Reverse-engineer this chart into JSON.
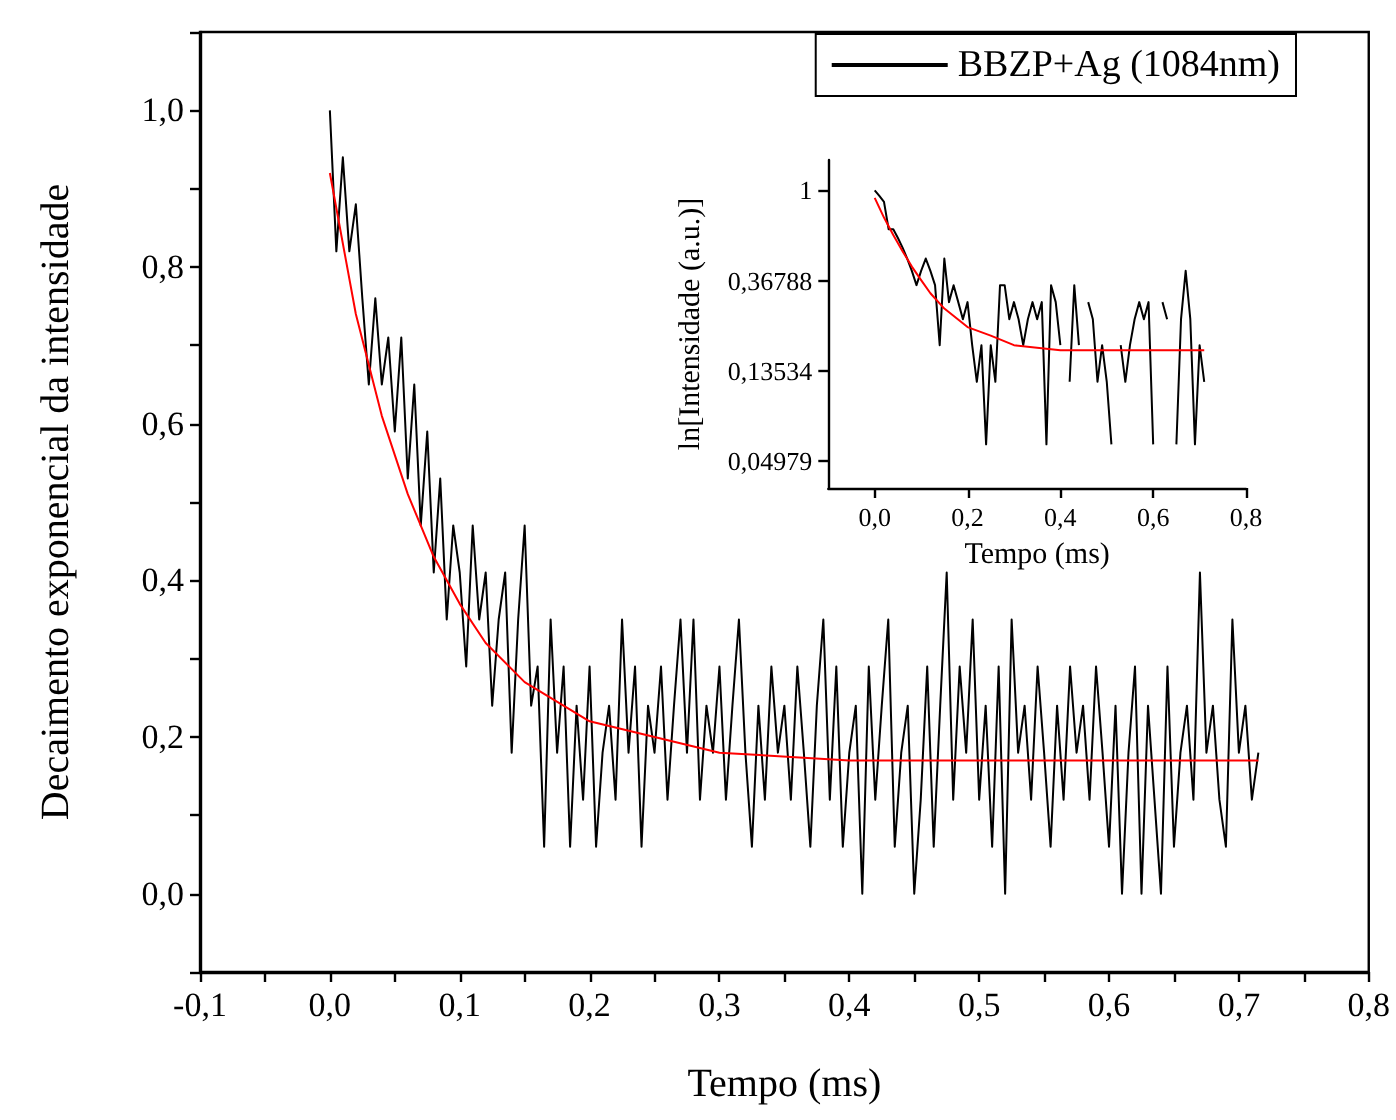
{
  "chart_data": [
    {
      "type": "line",
      "xlabel": "Tempo (ms)",
      "ylabel": "Decaimento exponencial da intensidade",
      "legend": "top right",
      "grid": false,
      "xlim": [
        -0.1,
        0.8
      ],
      "ylim": [
        -0.1,
        1.1
      ],
      "xticks": [
        {
          "value": -0.1,
          "label": "-0,1"
        },
        {
          "value": -0.05,
          "label": null
        },
        {
          "value": 0,
          "label": "0,0"
        },
        {
          "value": 0.05,
          "label": null
        },
        {
          "value": 0.1,
          "label": "0,1"
        },
        {
          "value": 0.15,
          "label": null
        },
        {
          "value": 0.2,
          "label": "0,2"
        },
        {
          "value": 0.25,
          "label": null
        },
        {
          "value": 0.3,
          "label": "0,3"
        },
        {
          "value": 0.35,
          "label": null
        },
        {
          "value": 0.4,
          "label": "0,4"
        },
        {
          "value": 0.45,
          "label": null
        },
        {
          "value": 0.5,
          "label": "0,5"
        },
        {
          "value": 0.55,
          "label": null
        },
        {
          "value": 0.6,
          "label": "0,6"
        },
        {
          "value": 0.65,
          "label": null
        },
        {
          "value": 0.7,
          "label": "0,7"
        },
        {
          "value": 0.75,
          "label": null
        },
        {
          "value": 0.8,
          "label": "0,8"
        }
      ],
      "yticks": [
        {
          "value": -0.1,
          "label": null
        },
        {
          "value": 0,
          "label": "0,0"
        },
        {
          "value": 0.1,
          "label": null
        },
        {
          "value": 0.2,
          "label": "0,2"
        },
        {
          "value": 0.3,
          "label": null
        },
        {
          "value": 0.4,
          "label": "0,4"
        },
        {
          "value": 0.5,
          "label": null
        },
        {
          "value": 0.6,
          "label": "0,6"
        },
        {
          "value": 0.7,
          "label": null
        },
        {
          "value": 0.8,
          "label": "0,8"
        },
        {
          "value": 0.9,
          "label": null
        },
        {
          "value": 1.0,
          "label": "1,0"
        },
        {
          "value": 1.1,
          "label": null
        }
      ],
      "series": [
        {
          "name": "BBZP+Ag (1084nm)",
          "color": "#000000",
          "x": [
            0,
            0.005,
            0.01,
            0.015,
            0.02,
            0.025,
            0.03,
            0.035,
            0.04,
            0.045,
            0.05,
            0.055,
            0.06,
            0.065,
            0.07,
            0.075,
            0.08,
            0.085,
            0.09,
            0.095,
            0.1,
            0.105,
            0.11,
            0.115,
            0.12,
            0.125,
            0.13,
            0.135,
            0.14,
            0.145,
            0.15,
            0.155,
            0.16,
            0.165,
            0.17,
            0.175,
            0.18,
            0.185,
            0.19,
            0.195,
            0.2,
            0.205,
            0.21,
            0.215,
            0.22,
            0.225,
            0.23,
            0.235,
            0.24,
            0.245,
            0.25,
            0.255,
            0.26,
            0.265,
            0.27,
            0.275,
            0.28,
            0.285,
            0.29,
            0.295,
            0.3,
            0.305,
            0.31,
            0.315,
            0.32,
            0.325,
            0.33,
            0.335,
            0.34,
            0.345,
            0.35,
            0.355,
            0.36,
            0.365,
            0.37,
            0.375,
            0.38,
            0.385,
            0.39,
            0.395,
            0.4,
            0.405,
            0.41,
            0.415,
            0.42,
            0.425,
            0.43,
            0.435,
            0.44,
            0.445,
            0.45,
            0.455,
            0.46,
            0.465,
            0.47,
            0.475,
            0.48,
            0.485,
            0.49,
            0.495,
            0.5,
            0.505,
            0.51,
            0.515,
            0.52,
            0.525,
            0.53,
            0.535,
            0.54,
            0.545,
            0.55,
            0.555,
            0.56,
            0.565,
            0.57,
            0.575,
            0.58,
            0.585,
            0.59,
            0.595,
            0.6,
            0.605,
            0.61,
            0.615,
            0.62,
            0.625,
            0.63,
            0.635,
            0.64,
            0.645,
            0.65,
            0.655,
            0.66,
            0.665,
            0.67,
            0.675,
            0.68,
            0.685,
            0.69,
            0.695,
            0.7,
            0.705,
            0.71,
            0.715
          ],
          "values": [
            1.0,
            0.82,
            0.94,
            0.82,
            0.88,
            0.76,
            0.65,
            0.76,
            0.65,
            0.71,
            0.59,
            0.71,
            0.53,
            0.65,
            0.47,
            0.59,
            0.41,
            0.53,
            0.35,
            0.47,
            0.41,
            0.29,
            0.47,
            0.35,
            0.41,
            0.24,
            0.35,
            0.41,
            0.18,
            0.35,
            0.47,
            0.24,
            0.29,
            0.06,
            0.35,
            0.18,
            0.29,
            0.06,
            0.24,
            0.12,
            0.29,
            0.06,
            0.18,
            0.24,
            0.12,
            0.35,
            0.18,
            0.29,
            0.06,
            0.24,
            0.18,
            0.29,
            0.12,
            0.24,
            0.35,
            0.18,
            0.35,
            0.12,
            0.24,
            0.18,
            0.29,
            0.12,
            0.24,
            0.35,
            0.18,
            0.06,
            0.24,
            0.12,
            0.29,
            0.18,
            0.24,
            0.12,
            0.29,
            0.18,
            0.06,
            0.24,
            0.35,
            0.12,
            0.29,
            0.06,
            0.18,
            0.24,
            0.0,
            0.29,
            0.12,
            0.24,
            0.35,
            0.06,
            0.18,
            0.24,
            0.0,
            0.12,
            0.29,
            0.06,
            0.24,
            0.41,
            0.12,
            0.29,
            0.18,
            0.35,
            0.12,
            0.24,
            0.06,
            0.29,
            0.0,
            0.35,
            0.18,
            0.24,
            0.12,
            0.29,
            0.18,
            0.06,
            0.24,
            0.12,
            0.29,
            0.18,
            0.24,
            0.12,
            0.29,
            0.18,
            0.06,
            0.24,
            0.0,
            0.18,
            0.29,
            0.0,
            0.24,
            0.12,
            0.0,
            0.29,
            0.06,
            0.18,
            0.24,
            0.12,
            0.41,
            0.18,
            0.24,
            0.12,
            0.06,
            0.35,
            0.18,
            0.24,
            0.12,
            0.18
          ]
        },
        {
          "color": "#ff0000",
          "x": [
            0,
            0.02,
            0.04,
            0.06,
            0.08,
            0.1,
            0.12,
            0.15,
            0.2,
            0.25,
            0.3,
            0.4,
            0.5,
            0.6,
            0.715
          ],
          "values": [
            0.92,
            0.74,
            0.61,
            0.51,
            0.43,
            0.37,
            0.32,
            0.27,
            0.22,
            0.2,
            0.18,
            0.17,
            0.17,
            0.17,
            0.17
          ]
        }
      ]
    },
    {
      "type": "line",
      "xlabel": "Tempo (ms)",
      "ylabel": "ln[Intensidade (a.u.)]",
      "log": "y",
      "grid": false,
      "xlim": [
        -0.1,
        0.8
      ],
      "ylim": [
        0.037,
        1.4
      ],
      "xticks": [
        {
          "value": 0,
          "label": "0,0"
        },
        {
          "value": 0.2,
          "label": "0,2"
        },
        {
          "value": 0.4,
          "label": "0,4"
        },
        {
          "value": 0.6,
          "label": "0,6"
        },
        {
          "value": 0.8,
          "label": "0,8"
        }
      ],
      "yticks": [
        1,
        {
          "value": 0.36788,
          "label": "0,36788"
        },
        {
          "value": 0.13534,
          "label": "0,13534"
        },
        {
          "value": 0.04979,
          "label": "0,04979"
        }
      ],
      "series": [
        {
          "color": "#000000",
          "x": [
            0,
            0.01,
            0.02,
            0.03,
            0.04,
            0.05,
            0.06,
            0.07,
            0.08,
            0.09,
            0.1,
            0.11,
            0.12,
            0.13,
            0.14,
            0.15,
            0.16,
            0.17,
            0.18,
            0.19,
            0.2,
            0.21,
            0.22,
            0.23,
            0.24,
            0.25,
            0.26,
            0.27,
            0.28,
            0.29,
            0.3,
            0.31,
            0.32,
            0.33,
            0.34,
            0.35,
            0.36,
            0.37,
            0.38,
            0.39,
            0.4,
            0.41,
            0.42,
            0.43,
            0.44,
            0.45,
            0.46,
            0.47,
            0.48,
            0.49,
            0.5,
            0.51,
            0.52,
            0.53,
            0.54,
            0.55,
            0.56,
            0.57,
            0.58,
            0.59,
            0.6,
            0.61,
            0.62,
            0.63,
            0.64,
            0.65,
            0.66,
            0.67,
            0.68,
            0.69,
            0.7,
            0.71
          ],
          "values": [
            1.0,
            0.94,
            0.88,
            0.65,
            0.65,
            0.59,
            0.53,
            0.47,
            0.41,
            0.35,
            0.41,
            0.47,
            0.41,
            0.35,
            0.18,
            0.47,
            0.29,
            0.35,
            0.29,
            0.24,
            0.29,
            0.18,
            0.12,
            0.18,
            0.06,
            0.18,
            0.12,
            0.35,
            0.35,
            0.24,
            0.29,
            0.24,
            0.18,
            0.24,
            0.29,
            0.24,
            0.29,
            0.06,
            0.35,
            0.29,
            0.18,
            null,
            0.12,
            0.35,
            0.18,
            null,
            0.29,
            0.24,
            0.12,
            0.18,
            0.12,
            0.06,
            null,
            0.18,
            0.12,
            0.18,
            0.24,
            0.29,
            0.24,
            0.29,
            0.06,
            null,
            0.29,
            0.24,
            null,
            0.06,
            0.24,
            0.41,
            0.24,
            0.06,
            0.18,
            0.12
          ]
        },
        {
          "color": "#ff0000",
          "x": [
            0,
            0.02,
            0.04,
            0.06,
            0.08,
            0.1,
            0.12,
            0.15,
            0.2,
            0.25,
            0.3,
            0.4,
            0.5,
            0.6,
            0.71
          ],
          "values": [
            0.92,
            0.74,
            0.61,
            0.51,
            0.43,
            0.37,
            0.32,
            0.27,
            0.22,
            0.2,
            0.18,
            0.17,
            0.17,
            0.17,
            0.17
          ]
        }
      ]
    }
  ]
}
